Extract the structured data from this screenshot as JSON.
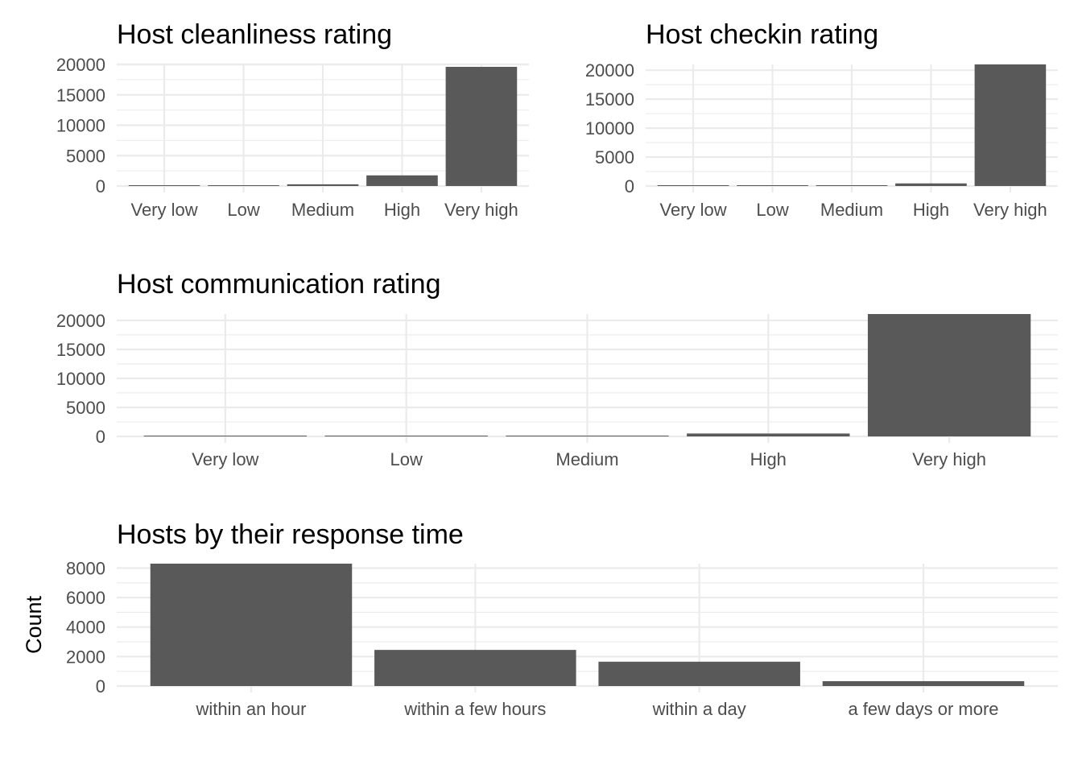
{
  "chart_data": [
    {
      "type": "bar",
      "title": "Host cleanliness rating",
      "xlabel": "",
      "ylabel": "",
      "categories": [
        "Very low",
        "Low",
        "Medium",
        "High",
        "Very high"
      ],
      "values": [
        20,
        15,
        280,
        1750,
        19600
      ],
      "ylim": [
        0,
        20000
      ],
      "yticks": [
        0,
        5000,
        10000,
        15000,
        20000
      ],
      "grid": true,
      "bar_color": "#595959"
    },
    {
      "type": "bar",
      "title": "Host checkin rating",
      "xlabel": "",
      "ylabel": "",
      "categories": [
        "Very low",
        "Low",
        "Medium",
        "High",
        "Very high"
      ],
      "values": [
        15,
        10,
        130,
        450,
        21000
      ],
      "ylim": [
        0,
        21000
      ],
      "yticks": [
        0,
        5000,
        10000,
        15000,
        20000
      ],
      "grid": true,
      "bar_color": "#595959"
    },
    {
      "type": "bar",
      "title": "Host communication rating",
      "xlabel": "",
      "ylabel": "",
      "categories": [
        "Very low",
        "Low",
        "Medium",
        "High",
        "Very high"
      ],
      "values": [
        60,
        10,
        90,
        500,
        21100
      ],
      "ylim": [
        0,
        21100
      ],
      "yticks": [
        0,
        5000,
        10000,
        15000,
        20000
      ],
      "grid": true,
      "bar_color": "#595959"
    },
    {
      "type": "bar",
      "title": "Hosts by their response time",
      "xlabel": "",
      "ylabel": "Count",
      "categories": [
        "within an hour",
        "within a few hours",
        "within a day",
        "a few days or more"
      ],
      "values": [
        8300,
        2450,
        1650,
        330
      ],
      "ylim": [
        0,
        8300
      ],
      "yticks": [
        0,
        2000,
        4000,
        6000,
        8000
      ],
      "grid": true,
      "bar_color": "#595959"
    }
  ]
}
